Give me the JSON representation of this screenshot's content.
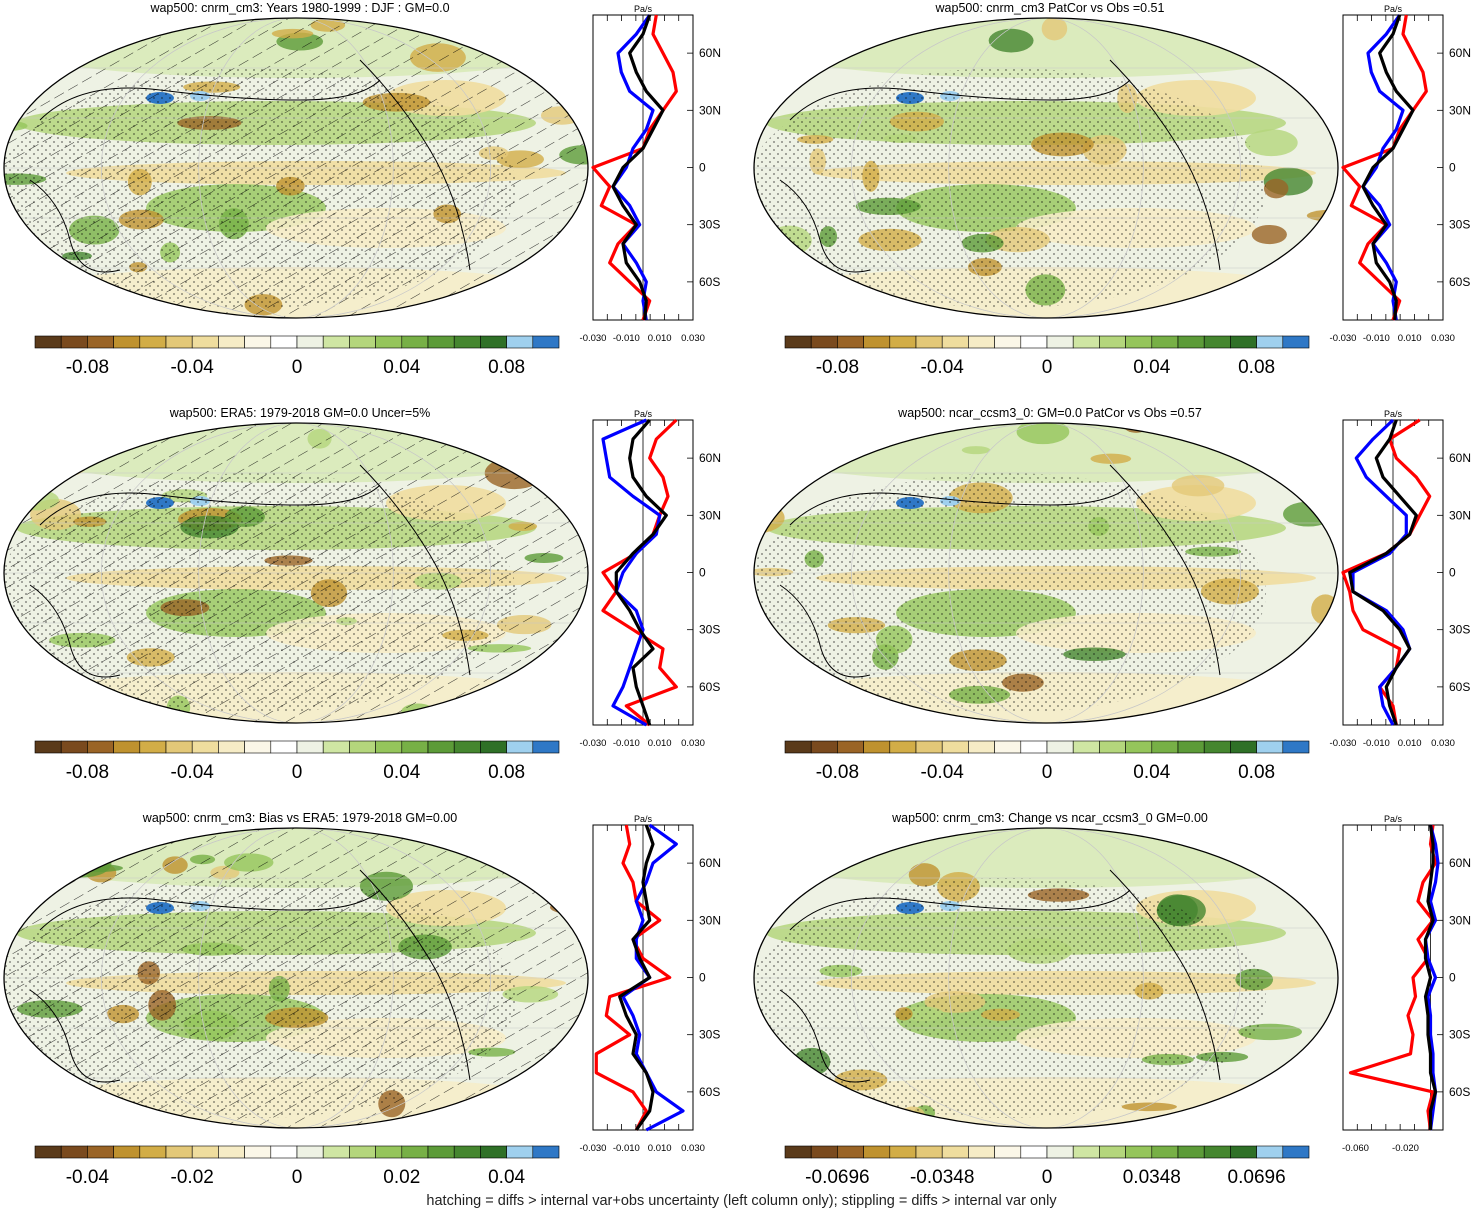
{
  "figure": {
    "footer": "hatching = diffs > internal var+obs uncertainty (left column only); stippling = diffs > internal var only"
  },
  "colors": {
    "palette": [
      "#5a3a1a",
      "#7a4a1e",
      "#9a6426",
      "#bf922f",
      "#d2ad47",
      "#e3c878",
      "#efdd9e",
      "#f6ecc6",
      "#fbf7e8",
      "#ffffff",
      "#eef2e4",
      "#cfe6a3",
      "#b4d67c",
      "#95c55b",
      "#77b046",
      "#5c9b38",
      "#45862f",
      "#2f7027",
      "#9fd0ee",
      "#2f78c6"
    ],
    "obs_profile": "#ff0000",
    "model_profile": "#0000ff",
    "mean_profile": "#000000"
  },
  "chart_data": [
    {
      "type": "heatmap",
      "title": "wap500: cnrm_cm3: Years 1980-1999 : DJF : GM=0.0",
      "colorbar_ticks": [
        "-0.08",
        "-0.04",
        "0",
        "0.04",
        "0.08"
      ],
      "colorbar_range": [
        -0.1,
        0.1
      ],
      "profile": {
        "unit": "Pa/s",
        "x_ticks": [
          "-0.030",
          "-0.010",
          "0.010",
          "0.030"
        ],
        "xlim": [
          -0.03,
          0.03
        ],
        "y_ticks": [
          "60N",
          "30N",
          "0",
          "30S",
          "60S"
        ],
        "lat": [
          80,
          70,
          60,
          50,
          40,
          30,
          20,
          10,
          0,
          -10,
          -20,
          -30,
          -40,
          -50,
          -60,
          -70,
          -80
        ],
        "series": [
          {
            "color": "red",
            "values": [
              0.008,
              0.006,
              0.012,
              0.018,
              0.02,
              0.012,
              0.004,
              0.0,
              -0.03,
              -0.02,
              -0.025,
              -0.004,
              -0.015,
              -0.02,
              -0.008,
              0.004,
              0.0
            ]
          },
          {
            "color": "blue",
            "values": [
              0.004,
              -0.004,
              -0.015,
              -0.013,
              -0.008,
              0.006,
              0.002,
              -0.006,
              -0.01,
              -0.018,
              -0.008,
              -0.002,
              -0.012,
              -0.004,
              0.002,
              0.0,
              0.002
            ]
          },
          {
            "color": "black",
            "values": [
              0.004,
              0.0,
              -0.008,
              -0.004,
              0.002,
              0.012,
              0.006,
              0.0,
              -0.012,
              -0.018,
              -0.012,
              -0.004,
              -0.012,
              -0.01,
              -0.002,
              0.002,
              0.001
            ]
          }
        ]
      },
      "hatching": true
    },
    {
      "type": "heatmap",
      "title": "wap500: cnrm_cm3 PatCor vs Obs =0.51",
      "colorbar_ticks": [
        "-0.08",
        "-0.04",
        "0",
        "0.04",
        "0.08"
      ],
      "colorbar_range": [
        -0.1,
        0.1
      ],
      "profile": {
        "unit": "Pa/s",
        "x_ticks": [
          "-0.030",
          "-0.010",
          "0.010",
          "0.030"
        ],
        "xlim": [
          -0.03,
          0.03
        ],
        "y_ticks": [
          "60N",
          "30N",
          "0",
          "30S",
          "60S"
        ],
        "lat": [
          80,
          70,
          60,
          50,
          40,
          30,
          20,
          10,
          0,
          -10,
          -20,
          -30,
          -40,
          -50,
          -60,
          -70,
          -80
        ],
        "series": [
          {
            "color": "red",
            "values": [
              0.008,
              0.006,
              0.012,
              0.018,
              0.02,
              0.012,
              0.004,
              0.0,
              -0.03,
              -0.02,
              -0.025,
              -0.004,
              -0.015,
              -0.02,
              -0.008,
              0.004,
              0.0
            ]
          },
          {
            "color": "blue",
            "values": [
              0.004,
              -0.004,
              -0.015,
              -0.013,
              -0.008,
              0.006,
              0.002,
              -0.006,
              -0.01,
              -0.018,
              -0.008,
              -0.002,
              -0.012,
              -0.004,
              0.002,
              0.0,
              0.002
            ]
          },
          {
            "color": "black",
            "values": [
              0.004,
              0.0,
              -0.008,
              -0.004,
              0.002,
              0.012,
              0.006,
              0.0,
              -0.012,
              -0.018,
              -0.012,
              -0.004,
              -0.012,
              -0.01,
              -0.002,
              0.002,
              0.001
            ]
          }
        ]
      },
      "hatching": false
    },
    {
      "type": "heatmap",
      "title": "wap500: ERA5: 1979-2018 GM=0.0 Uncer=5%",
      "colorbar_ticks": [
        "-0.08",
        "-0.04",
        "0",
        "0.04",
        "0.08"
      ],
      "colorbar_range": [
        -0.1,
        0.1
      ],
      "profile": {
        "unit": "Pa/s",
        "x_ticks": [
          "-0.030",
          "-0.010",
          "0.010",
          "0.030"
        ],
        "xlim": [
          -0.03,
          0.03
        ],
        "y_ticks": [
          "60N",
          "30N",
          "0",
          "30S",
          "60S"
        ],
        "lat": [
          80,
          70,
          60,
          50,
          40,
          30,
          20,
          10,
          0,
          -10,
          -20,
          -30,
          -40,
          -50,
          -60,
          -70,
          -80
        ],
        "series": [
          {
            "color": "red",
            "values": [
              0.02,
              0.008,
              0.004,
              0.012,
              0.015,
              0.01,
              0.006,
              -0.004,
              -0.024,
              -0.016,
              -0.024,
              -0.006,
              0.012,
              0.01,
              0.02,
              -0.01,
              0.004
            ]
          },
          {
            "color": "blue",
            "values": [
              0.002,
              -0.024,
              -0.022,
              -0.02,
              -0.006,
              0.01,
              0.008,
              -0.004,
              -0.012,
              -0.016,
              -0.004,
              0.0,
              -0.004,
              -0.008,
              -0.012,
              -0.018,
              0.002
            ]
          },
          {
            "color": "black",
            "values": [
              0.004,
              -0.006,
              -0.008,
              -0.006,
              0.002,
              0.014,
              0.006,
              -0.006,
              -0.016,
              -0.016,
              -0.008,
              -0.002,
              0.006,
              -0.006,
              -0.004,
              0.0,
              0.004
            ]
          }
        ]
      },
      "hatching": true
    },
    {
      "type": "heatmap",
      "title": "wap500: ncar_ccsm3_0: GM=0.0 PatCor vs Obs =0.57",
      "colorbar_ticks": [
        "-0.08",
        "-0.04",
        "0",
        "0.04",
        "0.08"
      ],
      "colorbar_range": [
        -0.1,
        0.1
      ],
      "profile": {
        "unit": "Pa/s",
        "x_ticks": [
          "-0.030",
          "-0.010",
          "0.010",
          "0.030"
        ],
        "xlim": [
          -0.03,
          0.03
        ],
        "y_ticks": [
          "60N",
          "30N",
          "0",
          "30S",
          "60S"
        ],
        "lat": [
          80,
          70,
          60,
          50,
          40,
          30,
          20,
          10,
          0,
          -10,
          -20,
          -30,
          -40,
          -50,
          -60,
          -70,
          -80
        ],
        "series": [
          {
            "color": "red",
            "values": [
              0.016,
              -0.002,
              0.002,
              0.014,
              0.022,
              0.016,
              0.01,
              -0.004,
              -0.03,
              -0.026,
              -0.024,
              -0.018,
              0.004,
              0.002,
              -0.008,
              0.0,
              0.002
            ]
          },
          {
            "color": "blue",
            "values": [
              0.0,
              -0.012,
              -0.022,
              -0.016,
              -0.004,
              0.008,
              0.008,
              -0.002,
              -0.024,
              -0.024,
              -0.004,
              0.006,
              0.01,
              0.002,
              -0.008,
              -0.006,
              0.0
            ]
          },
          {
            "color": "black",
            "values": [
              0.002,
              -0.002,
              -0.01,
              -0.006,
              0.004,
              0.014,
              0.01,
              -0.004,
              -0.026,
              -0.024,
              -0.006,
              0.004,
              0.01,
              0.002,
              -0.004,
              -0.002,
              0.002
            ]
          }
        ]
      },
      "hatching": false
    },
    {
      "type": "heatmap",
      "title": "wap500: cnrm_cm3: Bias vs ERA5: 1979-2018 GM=0.00",
      "colorbar_ticks": [
        "-0.04",
        "-0.02",
        "0",
        "0.02",
        "0.04"
      ],
      "colorbar_range": [
        -0.05,
        0.05
      ],
      "profile": {
        "unit": "Pa/s",
        "x_ticks": [
          "-0.030",
          "-0.010",
          "0.010",
          "0.030"
        ],
        "xlim": [
          -0.03,
          0.03
        ],
        "y_ticks": [
          "60N",
          "30N",
          "0",
          "30S",
          "60S"
        ],
        "lat": [
          80,
          70,
          60,
          50,
          40,
          30,
          20,
          10,
          0,
          -10,
          -20,
          -30,
          -40,
          -50,
          -60,
          -70,
          -80
        ],
        "series": [
          {
            "color": "red",
            "values": [
              -0.01,
              -0.008,
              -0.012,
              -0.006,
              -0.004,
              0.01,
              -0.006,
              0.0,
              0.016,
              -0.02,
              -0.022,
              -0.008,
              -0.028,
              -0.028,
              -0.006,
              0.002,
              -0.004
            ]
          },
          {
            "color": "blue",
            "values": [
              0.004,
              0.02,
              0.006,
              0.002,
              -0.004,
              0.0,
              -0.004,
              -0.004,
              0.004,
              -0.012,
              -0.006,
              -0.002,
              -0.004,
              0.002,
              0.008,
              0.024,
              0.002
            ]
          },
          {
            "color": "black",
            "values": [
              0.002,
              0.006,
              0.002,
              0.0,
              0.002,
              0.004,
              -0.006,
              -0.002,
              0.004,
              -0.014,
              -0.01,
              -0.004,
              -0.006,
              0.002,
              0.006,
              0.004,
              -0.004
            ]
          }
        ]
      },
      "hatching": true
    },
    {
      "type": "heatmap",
      "title": "wap500: cnrm_cm3: Change vs ncar_ccsm3_0 GM=0.00",
      "colorbar_ticks": [
        "-0.0696",
        "-0.0348",
        "0",
        "0.0348",
        "0.0696"
      ],
      "colorbar_range": [
        -0.087,
        0.087
      ],
      "profile": {
        "unit": "Pa/s",
        "x_ticks": [
          "-0.060",
          "-0.020"
        ],
        "xlim": [
          -0.07,
          0.01
        ],
        "y_ticks": [
          "60N",
          "30N",
          "0",
          "30S",
          "60S"
        ],
        "lat": [
          80,
          70,
          60,
          50,
          40,
          30,
          20,
          10,
          0,
          -10,
          -20,
          -30,
          -40,
          -50,
          -60,
          -70,
          -80
        ],
        "series": [
          {
            "color": "red",
            "values": [
              0.002,
              0.0,
              0.004,
              -0.006,
              -0.01,
              0.002,
              -0.01,
              -0.002,
              -0.014,
              -0.012,
              -0.018,
              -0.014,
              -0.016,
              -0.064,
              0.002,
              -0.002,
              0.0
            ]
          },
          {
            "color": "blue",
            "values": [
              0.0,
              0.004,
              0.006,
              0.004,
              0.0,
              0.004,
              -0.004,
              -0.002,
              0.004,
              -0.002,
              0.0,
              0.0,
              0.002,
              0.002,
              0.004,
              0.002,
              0.0
            ]
          },
          {
            "color": "black",
            "values": [
              0.0,
              0.002,
              0.002,
              0.0,
              -0.002,
              0.002,
              -0.004,
              -0.004,
              0.0,
              -0.004,
              -0.002,
              -0.002,
              0.0,
              0.0,
              0.004,
              0.0,
              0.0
            ]
          }
        ]
      },
      "hatching": false
    }
  ]
}
